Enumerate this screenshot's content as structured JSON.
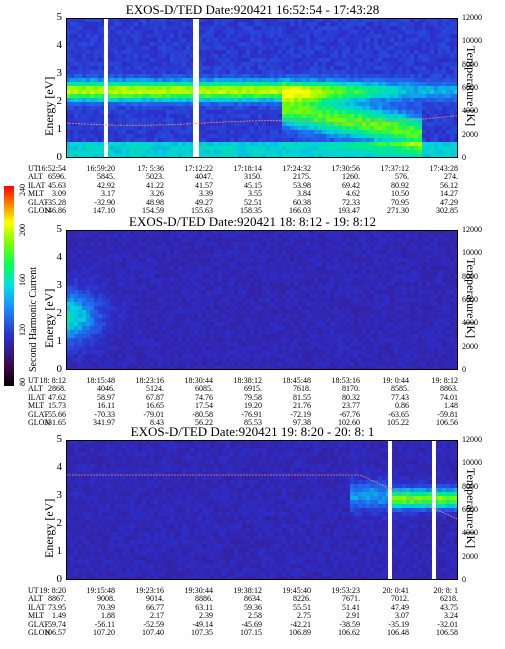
{
  "chart_data": [
    {
      "type": "heatmap",
      "title": "EXOS-D/TED   Date:920421   16:52:54 - 17:43:28",
      "ylabel": "Energy [eV]",
      "y2label": "Temperature [K]",
      "ylim": [
        0,
        5
      ],
      "y2lim": [
        0,
        12000
      ],
      "ytick_labels": [
        "0",
        "1",
        "2",
        "3",
        "4",
        "5"
      ],
      "y2tick_labels": [
        "0",
        "2000",
        "4000",
        "6000",
        "8000",
        "10000",
        "12000"
      ],
      "ephemeris_labels": [
        "UT",
        "ALT",
        "ILAT",
        "MLT",
        "GLAT",
        "GLON"
      ],
      "ephemeris_columns": [
        [
          "16:52:54",
          "6596.",
          "45.63",
          "3.09",
          "-35.28",
          "146.86"
        ],
        [
          "16:59:20",
          "5845.",
          "42.92",
          "3.17",
          "-32.90",
          "147.10"
        ],
        [
          "17: 5:36",
          "5023.",
          "41.22",
          "3.26",
          "48.98",
          "154.59"
        ],
        [
          "17:12:22",
          "4047.",
          "41.57",
          "3.39",
          "49.27",
          "155.63"
        ],
        [
          "17:18:14",
          "3150.",
          "45.15",
          "3.55",
          "52.51",
          "158.35"
        ],
        [
          "17:24:32",
          "2175.",
          "53.98",
          "3.84",
          "60.38",
          "166.03"
        ],
        [
          "17:30:56",
          "1260.",
          "69.42",
          "4.62",
          "72.33",
          "193.47"
        ],
        [
          "17:37:12",
          "576.",
          "80.92",
          "10.50",
          "70.95",
          "271.30"
        ],
        [
          "17:43:28",
          "274.",
          "56.12",
          "14.27",
          "47.29",
          "302.85"
        ]
      ]
    },
    {
      "type": "heatmap",
      "title": "EXOS-D/TED   Date:920421   18: 8:12 - 19: 8:12",
      "ylabel": "Energy [eV]",
      "y2label": "Temperature [K]",
      "ylim": [
        0,
        5
      ],
      "y2lim": [
        0,
        12000
      ],
      "ytick_labels": [
        "0",
        "1",
        "2",
        "3",
        "4",
        "5"
      ],
      "y2tick_labels": [
        "0",
        "2000",
        "4000",
        "6000",
        "8000",
        "10000",
        "12000"
      ],
      "colorbar_label": "Second Harmonic Current",
      "colorbar_ticks": [
        "80",
        "120",
        "160",
        "200",
        "240"
      ],
      "ephemeris_labels": [
        "UT",
        "ALT",
        "ILAT",
        "MLT",
        "GLAT",
        "GLON"
      ],
      "ephemeris_columns": [
        [
          "18: 8:12",
          "2868.",
          "47.62",
          "15.73",
          "-55.66",
          "331.65"
        ],
        [
          "18:15:48",
          "4046.",
          "58.97",
          "16.11",
          "-70.33",
          "341.97"
        ],
        [
          "18:23:16",
          "5124.",
          "67.87",
          "16.65",
          "-79.01",
          "8.43"
        ],
        [
          "18:30:44",
          "6085.",
          "74.76",
          "17.54",
          "-80.58",
          "56.22"
        ],
        [
          "18:38:12",
          "6915.",
          "79.58",
          "19.20",
          "-76.91",
          "85.53"
        ],
        [
          "18:45:48",
          "7618.",
          "81.55",
          "21.76",
          "-72.19",
          "97.38"
        ],
        [
          "18:53:16",
          "8170.",
          "80.32",
          "23.77",
          "-67.76",
          "102.60"
        ],
        [
          "19: 0:44",
          "8585.",
          "77.43",
          "0.86",
          "-63.65",
          "105.22"
        ],
        [
          "19: 8:12",
          "8863.",
          "74.01",
          "1.48",
          "-59.81",
          "106.56"
        ]
      ]
    },
    {
      "type": "heatmap",
      "title": "EXOS-D/TED   Date:920421   19: 8:20 - 20: 8: 1",
      "ylabel": "Energy [eV]",
      "y2label": "Temperature [K]",
      "ylim": [
        0,
        5
      ],
      "y2lim": [
        0,
        12000
      ],
      "ytick_labels": [
        "0",
        "1",
        "2",
        "3",
        "4",
        "5"
      ],
      "y2tick_labels": [
        "0",
        "2000",
        "4000",
        "6000",
        "8000",
        "10000",
        "12000"
      ],
      "ephemeris_labels": [
        "UT",
        "ALT",
        "ILAT",
        "MLT",
        "GLAT",
        "GLON"
      ],
      "ephemeris_columns": [
        [
          "19: 8:20",
          "8867.",
          "73.95",
          "1.49",
          "-59.74",
          "106.57"
        ],
        [
          "19:15:48",
          "9008.",
          "70.39",
          "1.88",
          "-56.11",
          "107.20"
        ],
        [
          "19:23:16",
          "9014.",
          "66.77",
          "2.17",
          "-52.59",
          "107.40"
        ],
        [
          "19:30:44",
          "8886.",
          "63.11",
          "2.39",
          "-49.14",
          "107.35"
        ],
        [
          "19:38:12",
          "8634.",
          "59.36",
          "2.58",
          "-45.69",
          "107.15"
        ],
        [
          "19:45:40",
          "8226.",
          "55.51",
          "2.75",
          "-42.21",
          "106.89"
        ],
        [
          "19:53:23",
          "7671.",
          "51.41",
          "2.91",
          "-38.59",
          "106.62"
        ],
        [
          "20: 0:41",
          "7012.",
          "47.49",
          "3.07",
          "-35.19",
          "106.48"
        ],
        [
          "20: 8: 1",
          "6218.",
          "43.75",
          "3.24",
          "-32.01",
          "106.58"
        ]
      ]
    }
  ]
}
